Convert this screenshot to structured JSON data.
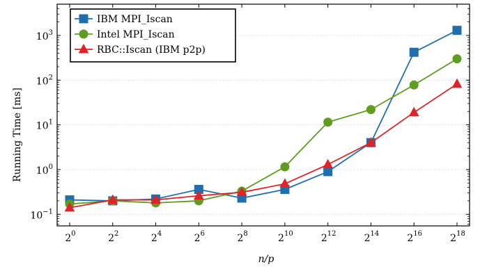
{
  "chart_data": {
    "type": "line",
    "xlabel": "n/p",
    "ylabel": "Running Time [ms]",
    "y_scale": "log10",
    "x_scale": "log2",
    "ylim": [
      0.055,
      5000
    ],
    "grid": "y-major-dotted",
    "legend_position": "top-left",
    "x": [
      1,
      4,
      16,
      64,
      256,
      1024,
      4096,
      16384,
      65536,
      262144
    ],
    "x_tick_labels": [
      {
        "base": "2",
        "exp": "0"
      },
      {
        "base": "2",
        "exp": "2"
      },
      {
        "base": "2",
        "exp": "4"
      },
      {
        "base": "2",
        "exp": "6"
      },
      {
        "base": "2",
        "exp": "8"
      },
      {
        "base": "2",
        "exp": "10"
      },
      {
        "base": "2",
        "exp": "12"
      },
      {
        "base": "2",
        "exp": "14"
      },
      {
        "base": "2",
        "exp": "16"
      },
      {
        "base": "2",
        "exp": "18"
      }
    ],
    "y_ticks": [
      {
        "value": 0.1,
        "base": "10",
        "exp": "−1"
      },
      {
        "value": 1,
        "base": "10",
        "exp": "0"
      },
      {
        "value": 10,
        "base": "10",
        "exp": "1"
      },
      {
        "value": 100,
        "base": "10",
        "exp": "2"
      },
      {
        "value": 1000,
        "base": "10",
        "exp": "3"
      }
    ],
    "series": [
      {
        "name": "IBM MPI_Iscan",
        "color": "#1f6fae",
        "marker": "square",
        "values": [
          0.21,
          0.2,
          0.22,
          0.36,
          0.23,
          0.36,
          0.9,
          4.0,
          420,
          1300
        ]
      },
      {
        "name": "Intel MPI_Iscan",
        "color": "#5f9c20",
        "marker": "circle",
        "values": [
          0.17,
          0.2,
          0.18,
          0.2,
          0.33,
          1.15,
          11.5,
          22,
          78,
          300
        ]
      },
      {
        "name": "RBC::Iscan (IBM p2p)",
        "color": "#e02327",
        "marker": "triangle",
        "values": [
          0.14,
          0.21,
          0.21,
          0.26,
          0.31,
          0.48,
          1.3,
          4.0,
          19,
          82
        ]
      }
    ]
  }
}
